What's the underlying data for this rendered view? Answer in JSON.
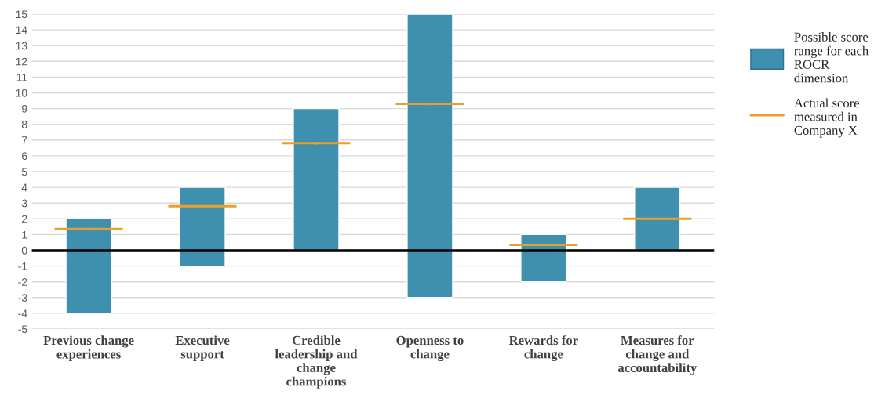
{
  "chart_data": {
    "type": "bar",
    "categories": [
      "Previous change\nexperiences",
      "Executive\nsupport",
      "Credible\nleadership and\nchange\nchampions",
      "Openness to\nchange",
      "Rewards for\nchange",
      "Measures for\nchange and\naccountability"
    ],
    "series": [
      {
        "name": "Possible score\nrange for each\nROCR\ndimension",
        "type": "bar",
        "color": "#3f8fae",
        "base": [
          -4,
          -1,
          0,
          -3,
          -2,
          0
        ],
        "values": [
          6,
          5,
          9,
          18,
          3,
          4
        ]
      },
      {
        "name": "Actual score\nmeasured in\nCompany X",
        "type": "scatter",
        "color": "#e8a02a",
        "values": [
          1.35,
          2.8,
          6.8,
          9.3,
          0.35,
          2.0
        ]
      }
    ],
    "ylim": [
      -5,
      15
    ],
    "yticks": [
      -5,
      -4,
      -3,
      -2,
      -1,
      0,
      1,
      2,
      3,
      4,
      5,
      6,
      7,
      8,
      9,
      10,
      11,
      12,
      13,
      14,
      15
    ],
    "grid": "y",
    "legend": "right",
    "ref_lines": [
      {
        "axis": "y",
        "value": 0,
        "color": "#000000"
      }
    ]
  }
}
